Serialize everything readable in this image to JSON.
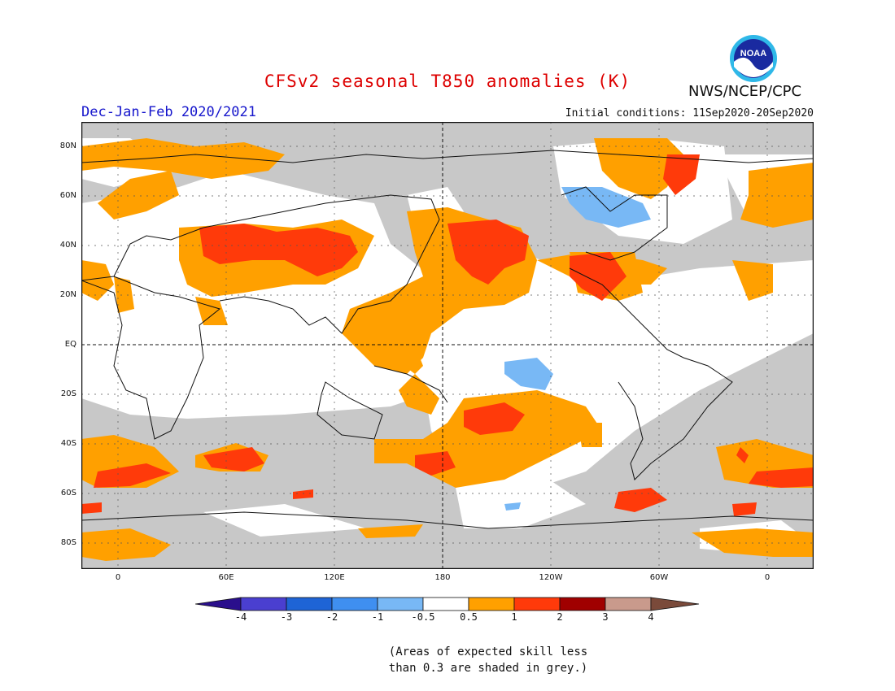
{
  "title": "CFSv2 seasonal T850 anomalies (K)",
  "agency": "NWS/NCEP/CPC",
  "logo_text": "NOAA",
  "period": "Dec-Jan-Feb 2020/2021",
  "initial_conditions": "Initial conditions: 11Sep2020-20Sep2020",
  "lat_labels": [
    "80N",
    "60N",
    "40N",
    "20N",
    "EQ",
    "20S",
    "40S",
    "60S",
    "80S"
  ],
  "lon_labels": [
    "0",
    "60E",
    "120E",
    "180",
    "120W",
    "60W",
    "0"
  ],
  "colorbar": {
    "ticks": [
      "-4",
      "-3",
      "-2",
      "-1",
      "-0.5",
      "0.5",
      "1",
      "2",
      "3",
      "4"
    ],
    "colors": [
      "#2a0f8c",
      "#4a3fd0",
      "#1e64d6",
      "#3f8ff0",
      "#78b8f5",
      "#ffffff",
      "#ffa000",
      "#ff3a0a",
      "#a00000",
      "#c99a8c",
      "#7a4a3a"
    ]
  },
  "legend_colors": {
    "grey_low_skill": "#c8c8c8",
    "warm_0_5_1": "#ffa000",
    "warm_1_2": "#ff3a0a",
    "cool_0_5_1": "#78b8f5"
  },
  "note_lines": [
    "(Areas of expected skill less",
    "than 0.3 are shaded in grey.)"
  ]
}
